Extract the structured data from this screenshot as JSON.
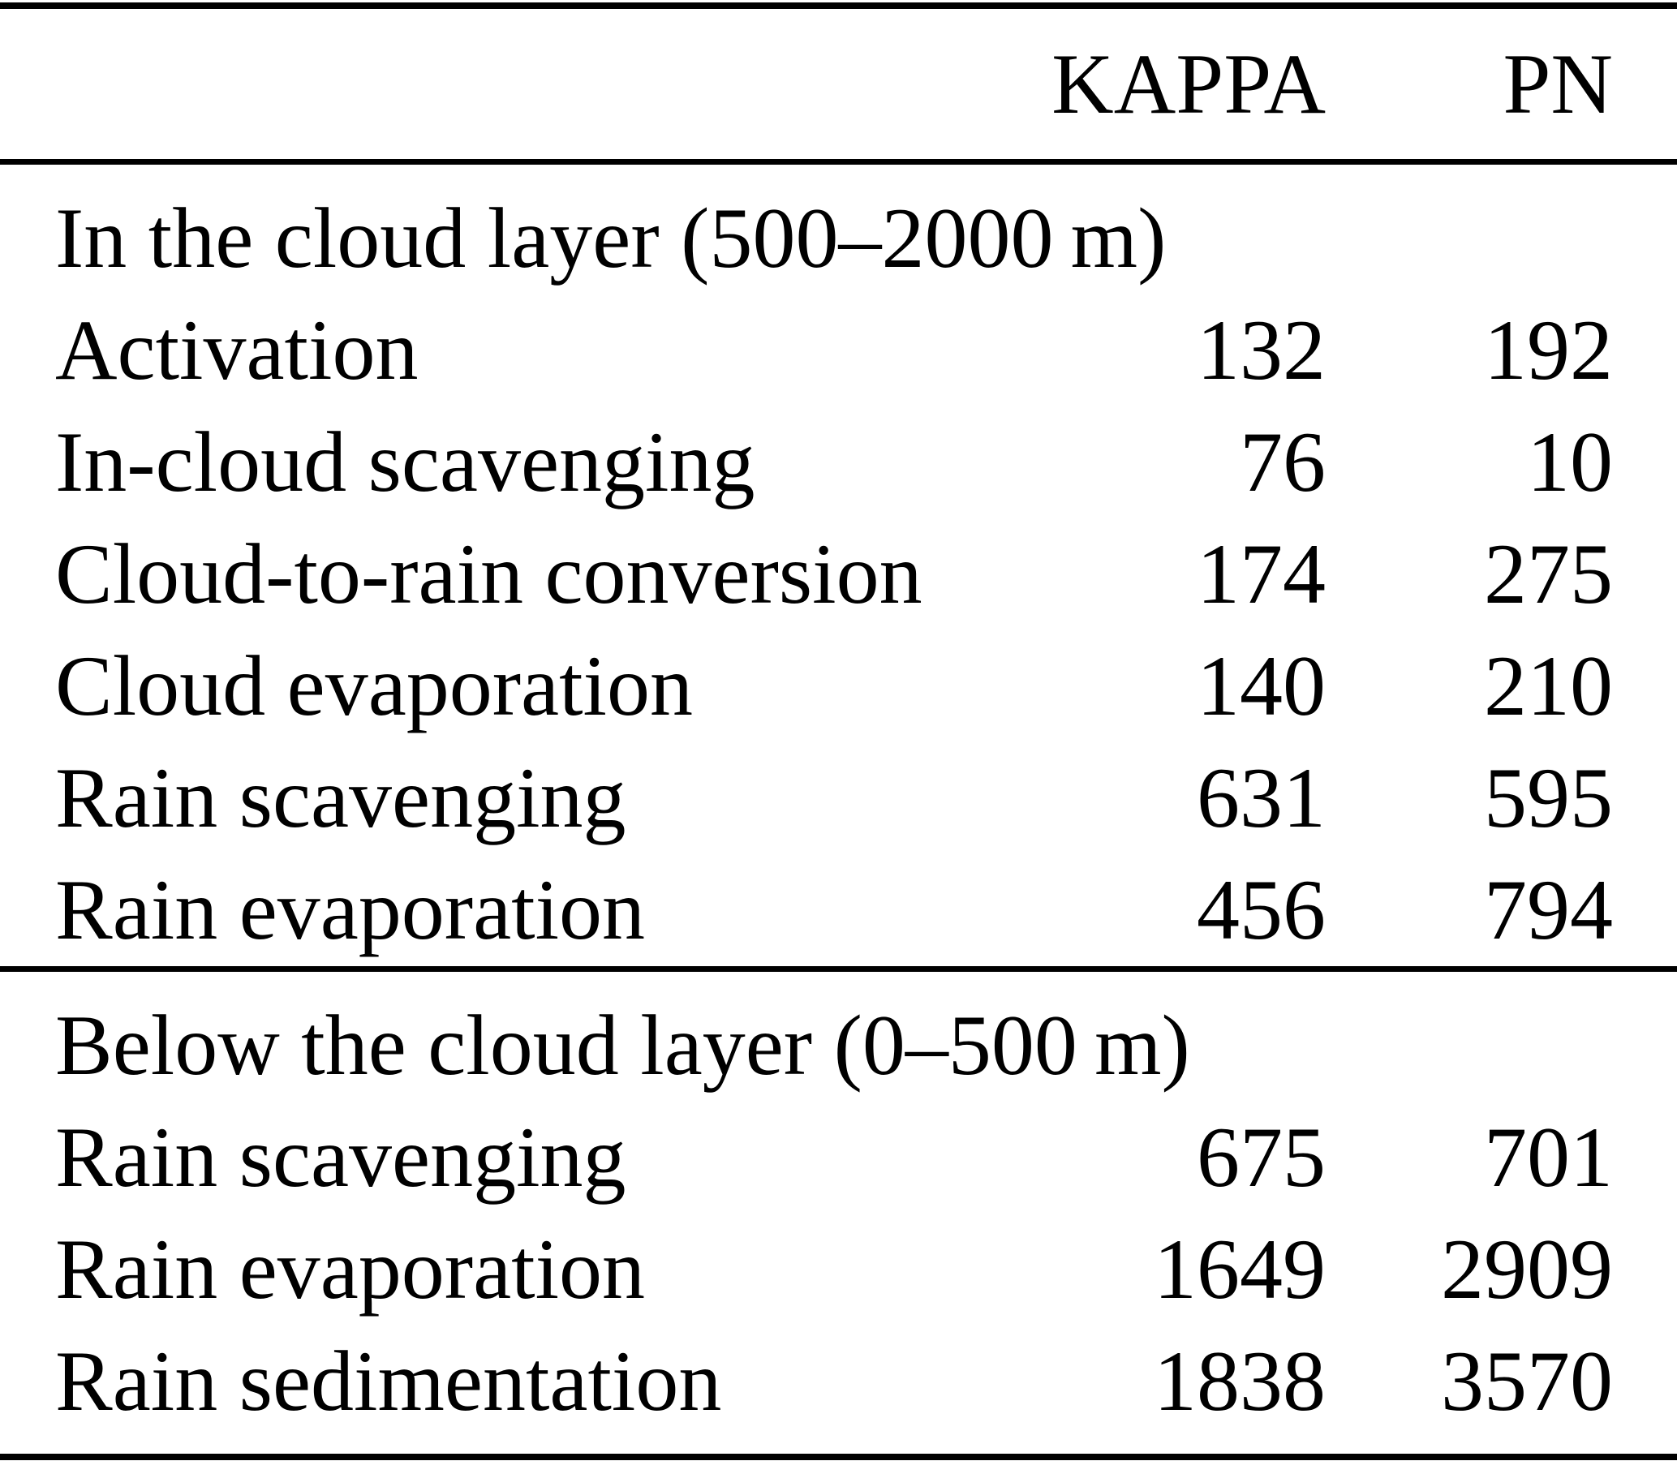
{
  "table": {
    "header": {
      "kappa": "KAPPA",
      "pn": "PN"
    },
    "sections": [
      {
        "title": "In the cloud layer (500–2000 m)",
        "rows": [
          {
            "label": "Activation",
            "kappa": "132",
            "pn": "192"
          },
          {
            "label": "In-cloud scavenging",
            "kappa": "76",
            "pn": "10"
          },
          {
            "label": "Cloud-to-rain conversion",
            "kappa": "174",
            "pn": "275"
          },
          {
            "label": "Cloud evaporation",
            "kappa": "140",
            "pn": "210"
          },
          {
            "label": "Rain scavenging",
            "kappa": "631",
            "pn": "595"
          },
          {
            "label": "Rain evaporation",
            "kappa": "456",
            "pn": "794"
          }
        ]
      },
      {
        "title": "Below the cloud layer (0–500 m)",
        "rows": [
          {
            "label": "Rain scavenging",
            "kappa": "675",
            "pn": "701"
          },
          {
            "label": "Rain evaporation",
            "kappa": "1649",
            "pn": "2909"
          },
          {
            "label": "Rain sedimentation",
            "kappa": "1838",
            "pn": "3570"
          }
        ]
      }
    ]
  },
  "colors": {
    "text": "#000000",
    "background": "#ffffff",
    "rule": "#000000"
  }
}
